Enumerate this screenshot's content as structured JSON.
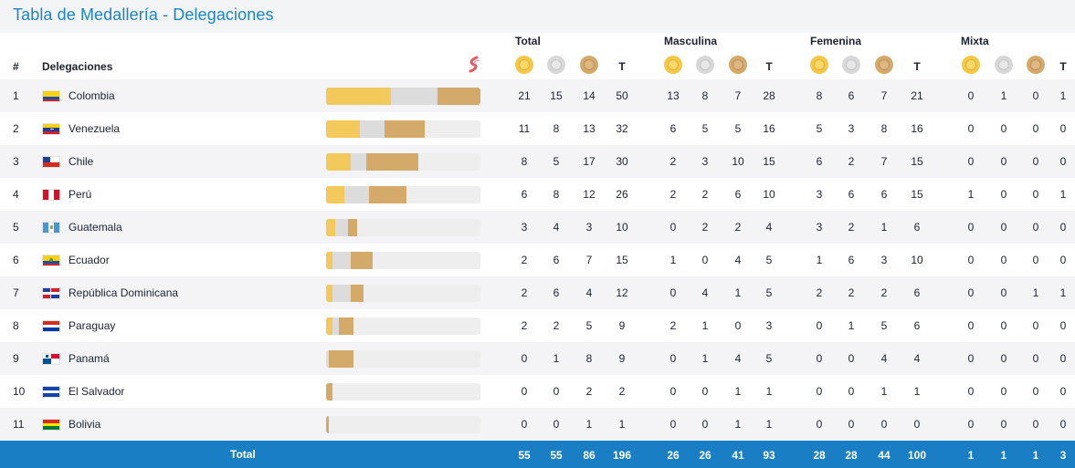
{
  "title": "Tabla de Medallería - Delegaciones",
  "groups": [
    "Total",
    "Masculina",
    "Femenina",
    "Mixta"
  ],
  "header": {
    "rank": "#",
    "delegations": "Delegaciones",
    "t": "T"
  },
  "icons": {
    "brand": "brand-logo-icon",
    "gold": "gold-medal-icon",
    "silver": "silver-medal-icon",
    "bronze": "bronze-medal-icon"
  },
  "colors": {
    "accent": "#1c84c6",
    "gold": "#f3c95c",
    "silver": "#dcdcdc",
    "bronze": "#d4aa6b",
    "total_bar": "#1a7ec4"
  },
  "rows": [
    {
      "rank": "1",
      "name": "Colombia",
      "flag": "colombia",
      "total": [
        "21",
        "15",
        "14",
        "50"
      ],
      "masculina": [
        "13",
        "8",
        "7",
        "28"
      ],
      "femenina": [
        "8",
        "6",
        "7",
        "21"
      ],
      "mixta": [
        "0",
        "1",
        "0",
        "1"
      ]
    },
    {
      "rank": "2",
      "name": "Venezuela",
      "flag": "venezuela",
      "total": [
        "11",
        "8",
        "13",
        "32"
      ],
      "masculina": [
        "6",
        "5",
        "5",
        "16"
      ],
      "femenina": [
        "5",
        "3",
        "8",
        "16"
      ],
      "mixta": [
        "0",
        "0",
        "0",
        "0"
      ]
    },
    {
      "rank": "3",
      "name": "Chile",
      "flag": "chile",
      "total": [
        "8",
        "5",
        "17",
        "30"
      ],
      "masculina": [
        "2",
        "3",
        "10",
        "15"
      ],
      "femenina": [
        "6",
        "2",
        "7",
        "15"
      ],
      "mixta": [
        "0",
        "0",
        "0",
        "0"
      ]
    },
    {
      "rank": "4",
      "name": "Perú",
      "flag": "peru",
      "total": [
        "6",
        "8",
        "12",
        "26"
      ],
      "masculina": [
        "2",
        "2",
        "6",
        "10"
      ],
      "femenina": [
        "3",
        "6",
        "6",
        "15"
      ],
      "mixta": [
        "1",
        "0",
        "0",
        "1"
      ]
    },
    {
      "rank": "5",
      "name": "Guatemala",
      "flag": "guatemala",
      "total": [
        "3",
        "4",
        "3",
        "10"
      ],
      "masculina": [
        "0",
        "2",
        "2",
        "4"
      ],
      "femenina": [
        "3",
        "2",
        "1",
        "6"
      ],
      "mixta": [
        "0",
        "0",
        "0",
        "0"
      ]
    },
    {
      "rank": "6",
      "name": "Ecuador",
      "flag": "ecuador",
      "total": [
        "2",
        "6",
        "7",
        "15"
      ],
      "masculina": [
        "1",
        "0",
        "4",
        "5"
      ],
      "femenina": [
        "1",
        "6",
        "3",
        "10"
      ],
      "mixta": [
        "0",
        "0",
        "0",
        "0"
      ]
    },
    {
      "rank": "7",
      "name": "República Dominicana",
      "flag": "dominicana",
      "total": [
        "2",
        "6",
        "4",
        "12"
      ],
      "masculina": [
        "0",
        "4",
        "1",
        "5"
      ],
      "femenina": [
        "2",
        "2",
        "2",
        "6"
      ],
      "mixta": [
        "0",
        "0",
        "1",
        "1"
      ]
    },
    {
      "rank": "8",
      "name": "Paraguay",
      "flag": "paraguay",
      "total": [
        "2",
        "2",
        "5",
        "9"
      ],
      "masculina": [
        "2",
        "1",
        "0",
        "3"
      ],
      "femenina": [
        "0",
        "1",
        "5",
        "6"
      ],
      "mixta": [
        "0",
        "0",
        "0",
        "0"
      ]
    },
    {
      "rank": "9",
      "name": "Panamá",
      "flag": "panama",
      "total": [
        "0",
        "1",
        "8",
        "9"
      ],
      "masculina": [
        "0",
        "1",
        "4",
        "5"
      ],
      "femenina": [
        "0",
        "0",
        "4",
        "4"
      ],
      "mixta": [
        "0",
        "0",
        "0",
        "0"
      ]
    },
    {
      "rank": "10",
      "name": "El Salvador",
      "flag": "elsalvador",
      "total": [
        "0",
        "0",
        "2",
        "2"
      ],
      "masculina": [
        "0",
        "0",
        "1",
        "1"
      ],
      "femenina": [
        "0",
        "0",
        "1",
        "1"
      ],
      "mixta": [
        "0",
        "0",
        "0",
        "0"
      ]
    },
    {
      "rank": "11",
      "name": "Bolivia",
      "flag": "bolivia",
      "total": [
        "0",
        "0",
        "1",
        "1"
      ],
      "masculina": [
        "0",
        "0",
        "1",
        "1"
      ],
      "femenina": [
        "0",
        "0",
        "0",
        "0"
      ],
      "mixta": [
        "0",
        "0",
        "0",
        "0"
      ]
    }
  ],
  "totals": {
    "label": "Total",
    "total": [
      "55",
      "55",
      "86",
      "196"
    ],
    "masculina": [
      "26",
      "26",
      "41",
      "93"
    ],
    "femenina": [
      "28",
      "28",
      "44",
      "100"
    ],
    "mixta": [
      "1",
      "1",
      "1",
      "3"
    ]
  }
}
